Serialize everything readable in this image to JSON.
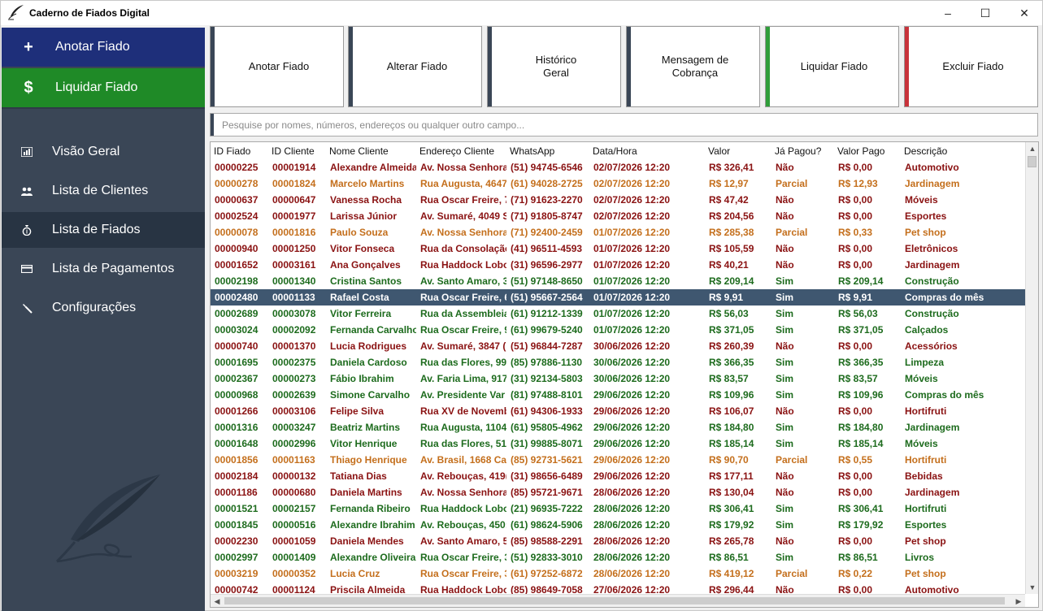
{
  "window": {
    "title": "Caderno de Fiados Digital",
    "min": "–",
    "max": "☐",
    "close": "✕"
  },
  "sidebar": {
    "actions": [
      {
        "icon": "+",
        "label": "Anotar Fiado"
      },
      {
        "icon": "$",
        "label": "Liquidar Fiado"
      }
    ],
    "nav": [
      {
        "label": "Visão Geral",
        "icon": "bar-chart-icon"
      },
      {
        "label": "Lista de Clientes",
        "icon": "users-icon"
      },
      {
        "label": "Lista de Fiados",
        "icon": "money-bag-icon"
      },
      {
        "label": "Lista de Pagamentos",
        "icon": "card-icon"
      },
      {
        "label": "Configurações",
        "icon": "wrench-icon"
      }
    ],
    "active_nav": "Lista de Fiados"
  },
  "toolbar": [
    {
      "label": "Anotar Fiado",
      "accent": "#3a4656"
    },
    {
      "label": "Alterar Fiado",
      "accent": "#3a4656"
    },
    {
      "label": "Histórico\nGeral",
      "accent": "#3a4656"
    },
    {
      "label": "Mensagem de\nCobrança",
      "accent": "#3a4656"
    },
    {
      "label": "Liquidar Fiado",
      "accent": "#2f9e3a"
    },
    {
      "label": "Excluir Fiado",
      "accent": "#c8323a"
    }
  ],
  "search": {
    "placeholder": "Pesquise por nomes, números, endereços ou qualquer outro campo...",
    "value": ""
  },
  "table": {
    "columns": [
      "ID Fiado",
      "ID Cliente",
      "Nome Cliente",
      "Endereço Cliente",
      "WhatsApp",
      "Data/Hora",
      "Valor",
      "Já Pagou?",
      "Valor Pago",
      "Descrição"
    ],
    "selected_index": 8,
    "rows": [
      [
        "00000225",
        "00001914",
        "Alexandre Almeida",
        "Av. Nossa Senhora",
        "(51) 94745-6546",
        "02/07/2026 12:20",
        "R$ 326,41",
        "Não",
        "R$ 0,00",
        "Automotivo"
      ],
      [
        "00000278",
        "00001824",
        "Marcelo Martins",
        "Rua Augusta, 4647",
        "(61) 94028-2725",
        "02/07/2026 12:20",
        "R$ 12,97",
        "Parcial",
        "R$ 12,93",
        "Jardinagem"
      ],
      [
        "00000637",
        "00000647",
        "Vanessa Rocha",
        "Rua Oscar Freire, 7",
        "(71) 91623-2270",
        "02/07/2026 12:20",
        "R$ 47,42",
        "Não",
        "R$ 0,00",
        "Móveis"
      ],
      [
        "00002524",
        "00001977",
        "Larissa Júnior",
        "Av. Sumaré, 4049 S",
        "(71) 91805-8747",
        "02/07/2026 12:20",
        "R$ 204,56",
        "Não",
        "R$ 0,00",
        "Esportes"
      ],
      [
        "00000078",
        "00001816",
        "Paulo Souza",
        "Av. Nossa Senhora",
        "(71) 92400-2459",
        "01/07/2026 12:20",
        "R$ 285,38",
        "Parcial",
        "R$ 0,33",
        "Pet shop"
      ],
      [
        "00000940",
        "00001250",
        "Vitor Fonseca",
        "Rua da Consolação,",
        "(41) 96511-4593",
        "01/07/2026 12:20",
        "R$ 105,59",
        "Não",
        "R$ 0,00",
        "Eletrônicos"
      ],
      [
        "00001652",
        "00003161",
        "Ana Gonçalves",
        "Rua Haddock Lobo",
        "(31) 96596-2977",
        "01/07/2026 12:20",
        "R$ 40,21",
        "Não",
        "R$ 0,00",
        "Jardinagem"
      ],
      [
        "00002198",
        "00001340",
        "Cristina Santos",
        "Av. Santo Amaro, 3",
        "(51) 97148-8650",
        "01/07/2026 12:20",
        "R$ 209,14",
        "Sim",
        "R$ 209,14",
        "Construção"
      ],
      [
        "00002480",
        "00001133",
        "Rafael Costa",
        "Rua Oscar Freire, 6",
        "(51) 95667-2564",
        "01/07/2026 12:20",
        "R$ 9,91",
        "Sim",
        "R$ 9,91",
        "Compras do mês"
      ],
      [
        "00002689",
        "00003078",
        "Vitor Ferreira",
        "Rua da Assembleia",
        "(61) 91212-1339",
        "01/07/2026 12:20",
        "R$ 56,03",
        "Sim",
        "R$ 56,03",
        "Construção"
      ],
      [
        "00003024",
        "00002092",
        "Fernanda Carvalho",
        "Rua Oscar Freire, 9",
        "(61) 99679-5240",
        "01/07/2026 12:20",
        "R$ 371,05",
        "Sim",
        "R$ 371,05",
        "Calçados"
      ],
      [
        "00000740",
        "00001370",
        "Lucia Rodrigues",
        "Av. Sumaré, 3847 (",
        "(51) 96844-7287",
        "30/06/2026 12:20",
        "R$ 260,39",
        "Não",
        "R$ 0,00",
        "Acessórios"
      ],
      [
        "00001695",
        "00002375",
        "Daniela Cardoso",
        "Rua das Flores, 993",
        "(85) 97886-1130",
        "30/06/2026 12:20",
        "R$ 366,35",
        "Sim",
        "R$ 366,35",
        "Limpeza"
      ],
      [
        "00002367",
        "00000273",
        "Fábio Ibrahim",
        "Av. Faria Lima, 917",
        "(31) 92134-5803",
        "30/06/2026 12:20",
        "R$ 83,57",
        "Sim",
        "R$ 83,57",
        "Móveis"
      ],
      [
        "00000968",
        "00002639",
        "Simone Carvalho",
        "Av. Presidente Var",
        "(81) 97488-8101",
        "29/06/2026 12:20",
        "R$ 109,96",
        "Sim",
        "R$ 109,96",
        "Compras do mês"
      ],
      [
        "00001266",
        "00003106",
        "Felipe Silva",
        "Rua XV de Novemb",
        "(61) 94306-1933",
        "29/06/2026 12:20",
        "R$ 106,07",
        "Não",
        "R$ 0,00",
        "Hortifruti"
      ],
      [
        "00001316",
        "00003247",
        "Beatriz Martins",
        "Rua Augusta, 1104",
        "(61) 95805-4962",
        "29/06/2026 12:20",
        "R$ 184,80",
        "Sim",
        "R$ 184,80",
        "Jardinagem"
      ],
      [
        "00001648",
        "00002996",
        "Vitor Henrique",
        "Rua das Flores, 514",
        "(31) 99885-8071",
        "29/06/2026 12:20",
        "R$ 185,14",
        "Sim",
        "R$ 185,14",
        "Móveis"
      ],
      [
        "00001856",
        "00001163",
        "Thiago Henrique",
        "Av. Brasil, 1668 Ca",
        "(85) 92731-5621",
        "29/06/2026 12:20",
        "R$ 90,70",
        "Parcial",
        "R$ 0,55",
        "Hortifruti"
      ],
      [
        "00002184",
        "00000132",
        "Tatiana Dias",
        "Av. Rebouças, 419(",
        "(31) 98656-6489",
        "29/06/2026 12:20",
        "R$ 177,11",
        "Não",
        "R$ 0,00",
        "Bebidas"
      ],
      [
        "00001186",
        "00000680",
        "Daniela Martins",
        "Av. Nossa Senhora",
        "(85) 95721-9671",
        "28/06/2026 12:20",
        "R$ 130,04",
        "Não",
        "R$ 0,00",
        "Jardinagem"
      ],
      [
        "00001521",
        "00002157",
        "Fernanda Ribeiro",
        "Rua Haddock Lobo",
        "(21) 96935-7222",
        "28/06/2026 12:20",
        "R$ 306,41",
        "Sim",
        "R$ 306,41",
        "Hortifruti"
      ],
      [
        "00001845",
        "00000516",
        "Alexandre Ibrahim",
        "Av. Rebouças, 450:",
        "(61) 98624-5906",
        "28/06/2026 12:20",
        "R$ 179,92",
        "Sim",
        "R$ 179,92",
        "Esportes"
      ],
      [
        "00002230",
        "00001059",
        "Daniela Mendes",
        "Av. Santo Amaro, 5",
        "(85) 98588-2291",
        "28/06/2026 12:20",
        "R$ 265,78",
        "Não",
        "R$ 0,00",
        "Pet shop"
      ],
      [
        "00002997",
        "00001409",
        "Alexandre Oliveira",
        "Rua Oscar Freire, 3",
        "(51) 92833-3010",
        "28/06/2026 12:20",
        "R$ 86,51",
        "Sim",
        "R$ 86,51",
        "Livros"
      ],
      [
        "00003219",
        "00000352",
        "Lucia Cruz",
        "Rua Oscar Freire, 3",
        "(61) 97252-6872",
        "28/06/2026 12:20",
        "R$ 419,12",
        "Parcial",
        "R$ 0,22",
        "Pet shop"
      ],
      [
        "00000742",
        "00001124",
        "Priscila Almeida",
        "Rua Haddock Lobo",
        "(85) 98649-7058",
        "27/06/2026 12:20",
        "R$ 296,44",
        "Não",
        "R$ 0,00",
        "Automotivo"
      ]
    ]
  }
}
